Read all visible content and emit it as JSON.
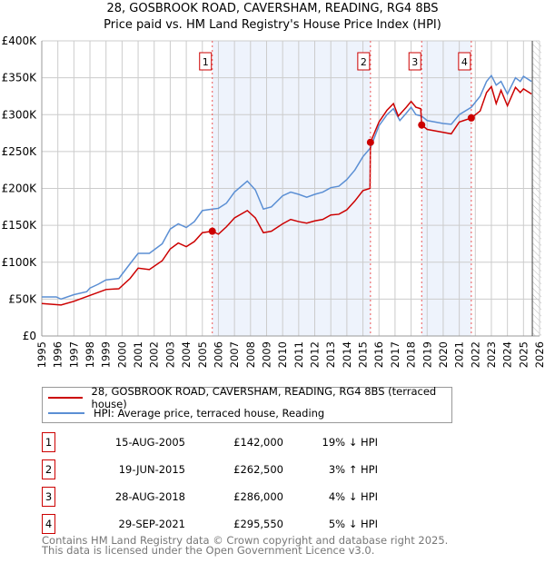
{
  "chart_data": {
    "type": "line",
    "title": "28, GOSBROOK ROAD, CAVERSHAM, READING, RG4 8BS",
    "subtitle": "Price paid vs. HM Land Registry's House Price Index (HPI)",
    "xlim": [
      1995,
      2026
    ],
    "ylim": [
      0,
      400000
    ],
    "y_ticks": [
      {
        "v": 0,
        "label": "£0"
      },
      {
        "v": 50000,
        "label": "£50K"
      },
      {
        "v": 100000,
        "label": "£100K"
      },
      {
        "v": 150000,
        "label": "£150K"
      },
      {
        "v": 200000,
        "label": "£200K"
      },
      {
        "v": 250000,
        "label": "£250K"
      },
      {
        "v": 300000,
        "label": "£300K"
      },
      {
        "v": 350000,
        "label": "£350K"
      },
      {
        "v": 400000,
        "label": "£400K"
      }
    ],
    "x_ticks": [
      "1995",
      "1996",
      "1997",
      "1998",
      "1999",
      "2000",
      "2001",
      "2002",
      "2003",
      "2004",
      "2005",
      "2006",
      "2007",
      "2008",
      "2009",
      "2010",
      "2011",
      "2012",
      "2013",
      "2014",
      "2015",
      "2016",
      "2017",
      "2018",
      "2019",
      "2020",
      "2021",
      "2022",
      "2023",
      "2024",
      "2025",
      "2026"
    ],
    "grid": true,
    "colors": {
      "property": "#cc0000",
      "hpi": "#5b8fd4",
      "shade": "#eef3fc"
    },
    "series": [
      {
        "name": "28, GOSBROOK ROAD, CAVERSHAM, READING, RG4 8BS (terraced house)",
        "color": "#cc0000",
        "points": [
          [
            1995,
            44
          ],
          [
            1996.2,
            42
          ],
          [
            1997,
            47
          ],
          [
            1998,
            55
          ],
          [
            1999,
            63
          ],
          [
            1999.8,
            64
          ],
          [
            2000.5,
            78
          ],
          [
            2001,
            92
          ],
          [
            2001.7,
            90
          ],
          [
            2002.5,
            102
          ],
          [
            2003,
            118
          ],
          [
            2003.5,
            126
          ],
          [
            2004,
            121
          ],
          [
            2004.5,
            128
          ],
          [
            2005,
            140
          ],
          [
            2005.62,
            142
          ],
          [
            2006,
            138
          ],
          [
            2006.5,
            148
          ],
          [
            2007,
            160
          ],
          [
            2007.8,
            170
          ],
          [
            2008.3,
            160
          ],
          [
            2008.8,
            140
          ],
          [
            2009.3,
            142
          ],
          [
            2010,
            152
          ],
          [
            2010.5,
            158
          ],
          [
            2011,
            155
          ],
          [
            2011.5,
            153
          ],
          [
            2012,
            156
          ],
          [
            2012.5,
            158
          ],
          [
            2013,
            164
          ],
          [
            2013.5,
            165
          ],
          [
            2014,
            171
          ],
          [
            2014.5,
            183
          ],
          [
            2015,
            197
          ],
          [
            2015.44,
            200
          ],
          [
            2015.47,
            262.5
          ],
          [
            2016,
            290
          ],
          [
            2016.5,
            306
          ],
          [
            2016.9,
            315
          ],
          [
            2017.2,
            298
          ],
          [
            2017.7,
            310
          ],
          [
            2018,
            318
          ],
          [
            2018.3,
            310
          ],
          [
            2018.6,
            308
          ],
          [
            2018.66,
            286
          ],
          [
            2019,
            280
          ],
          [
            2019.5,
            278
          ],
          [
            2020,
            276
          ],
          [
            2020.5,
            274
          ],
          [
            2021,
            290
          ],
          [
            2021.75,
            295.5
          ],
          [
            2022.3,
            305
          ],
          [
            2022.7,
            330
          ],
          [
            2023,
            338
          ],
          [
            2023.3,
            315
          ],
          [
            2023.6,
            333
          ],
          [
            2024,
            312
          ],
          [
            2024.5,
            337
          ],
          [
            2024.8,
            330
          ],
          [
            2025,
            335
          ],
          [
            2025.5,
            328
          ]
        ]
      },
      {
        "name": "HPI: Average price, terraced house, Reading",
        "color": "#5b8fd4",
        "points": [
          [
            1995,
            53
          ],
          [
            1995.9,
            53
          ],
          [
            1996.2,
            50
          ],
          [
            1997,
            56
          ],
          [
            1997.8,
            60
          ],
          [
            1998,
            65
          ],
          [
            1998.5,
            70
          ],
          [
            1999,
            76
          ],
          [
            1999.8,
            78
          ],
          [
            2000.5,
            98
          ],
          [
            2001,
            112
          ],
          [
            2001.7,
            112
          ],
          [
            2002.5,
            125
          ],
          [
            2003,
            145
          ],
          [
            2003.5,
            152
          ],
          [
            2004,
            147
          ],
          [
            2004.5,
            155
          ],
          [
            2005,
            170
          ],
          [
            2005.62,
            172
          ],
          [
            2006,
            173
          ],
          [
            2006.5,
            180
          ],
          [
            2007,
            195
          ],
          [
            2007.8,
            210
          ],
          [
            2008.3,
            198
          ],
          [
            2008.8,
            172
          ],
          [
            2009.3,
            175
          ],
          [
            2010,
            190
          ],
          [
            2010.5,
            195
          ],
          [
            2011,
            192
          ],
          [
            2011.5,
            188
          ],
          [
            2012,
            192
          ],
          [
            2012.5,
            195
          ],
          [
            2013,
            201
          ],
          [
            2013.5,
            203
          ],
          [
            2014,
            212
          ],
          [
            2014.5,
            225
          ],
          [
            2015,
            243
          ],
          [
            2015.47,
            255
          ],
          [
            2016,
            285
          ],
          [
            2016.5,
            300
          ],
          [
            2016.9,
            308
          ],
          [
            2017.3,
            292
          ],
          [
            2017.7,
            302
          ],
          [
            2018,
            310
          ],
          [
            2018.3,
            300
          ],
          [
            2018.66,
            298
          ],
          [
            2019,
            292
          ],
          [
            2019.5,
            290
          ],
          [
            2020,
            288
          ],
          [
            2020.5,
            287
          ],
          [
            2021,
            300
          ],
          [
            2021.75,
            310
          ],
          [
            2022.3,
            325
          ],
          [
            2022.7,
            345
          ],
          [
            2023,
            353
          ],
          [
            2023.3,
            340
          ],
          [
            2023.6,
            345
          ],
          [
            2024,
            328
          ],
          [
            2024.5,
            350
          ],
          [
            2024.8,
            345
          ],
          [
            2025,
            352
          ],
          [
            2025.5,
            345
          ]
        ]
      }
    ],
    "sales": [
      {
        "n": "1",
        "x": 2005.62,
        "price": 142000,
        "date": "15-AUG-2005",
        "price_label": "£142,000",
        "hpi": "19% ↓ HPI"
      },
      {
        "n": "2",
        "x": 2015.47,
        "price": 262500,
        "date": "19-JUN-2015",
        "price_label": "£262,500",
        "hpi": "3% ↑ HPI"
      },
      {
        "n": "3",
        "x": 2018.66,
        "price": 286000,
        "date": "28-AUG-2018",
        "price_label": "£286,000",
        "hpi": "4% ↓ HPI"
      },
      {
        "n": "4",
        "x": 2021.75,
        "price": 295550,
        "date": "29-SEP-2021",
        "price_label": "£295,550",
        "hpi": "5% ↓ HPI"
      }
    ],
    "forecast_from": 2025.55
  },
  "footer": {
    "line1": "Contains HM Land Registry data © Crown copyright and database right 2025.",
    "line2": "This data is licensed under the Open Government Licence v3.0."
  }
}
